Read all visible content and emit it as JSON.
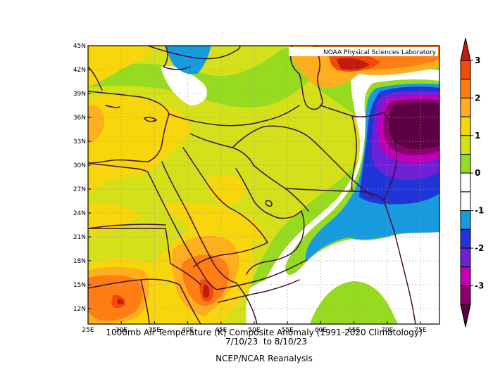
{
  "map": {
    "credit": "NOAA Physical Sciences Laboratory",
    "caption_line1": "1000mb Air Temperature (K) Composite Anomaly (1991-2020 Climatology)",
    "caption_line2": "7/10/23  to 8/10/23",
    "caption_line3": "NCEP/NCAR Reanalysis",
    "lat_ticks": [
      "45N",
      "42N",
      "39N",
      "36N",
      "33N",
      "30N",
      "27N",
      "24N",
      "21N",
      "18N",
      "15N",
      "12N"
    ],
    "lon_ticks": [
      "25E",
      "30E",
      "35E",
      "40E",
      "45E",
      "50E",
      "55E",
      "60E",
      "65E",
      "70E",
      "75E"
    ],
    "colorbar_ticks": [
      "3",
      "2",
      "1",
      "0",
      "-1",
      "-2",
      "-3"
    ],
    "colors": {
      "c_m3": "#5e0044",
      "c_m25": "#8a006f",
      "c_m2": "#c000b8",
      "c_m15": "#6f1fd6",
      "c_m1": "#1f35d8",
      "c_m05": "#189bde",
      "c_0": "#ffffff",
      "c_05": "#96db1f",
      "c_1": "#d3e01a",
      "c_15": "#f8d60c",
      "c_2": "#ffae1d",
      "c_25": "#ff7d12",
      "c_3": "#f24b08",
      "c_35": "#c01b0c",
      "border": "#3f0f37",
      "grid": "#999999"
    }
  }
}
